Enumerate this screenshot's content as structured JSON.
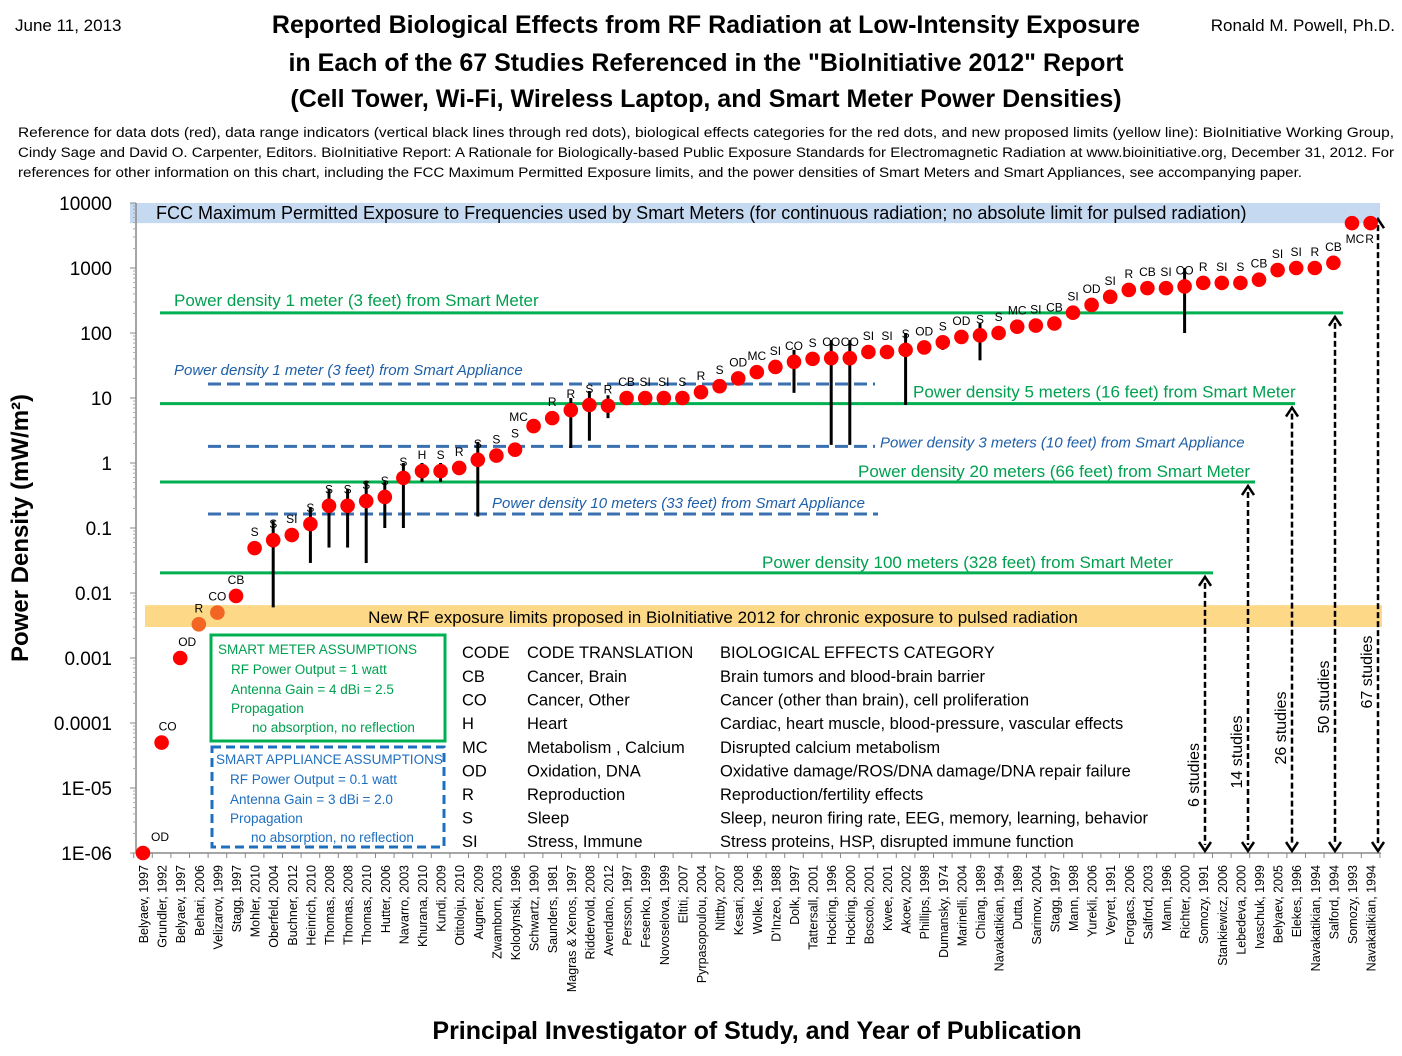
{
  "header": {
    "date": "June 11, 2013",
    "author": "Ronald M. Powell, Ph.D.",
    "title_lines": [
      "Reported Biological Effects from RF Radiation at Low-Intensity Exposure",
      "in Each of the 67 Studies Referenced in the \"BioInitiative 2012\" Report",
      "(Cell Tower, Wi-Fi, Wireless Laptop, and Smart Meter Power Densities)"
    ],
    "reference_lines": [
      "Reference for data dots (red), data range indicators (vertical black lines through red dots),  biological effects categories for the red dots, and new proposed limits (yellow line):  BioInitiative Working Group,",
      "Cindy Sage and David O. Carpenter, Editors. BioInitiative Report: A Rationale for Biologically-based Public Exposure Standards for Electromagnetic Radiation at www.bioinitiative.org, December 31, 2012.  For",
      "references for other information on this chart, including  the FCC Maximum Permitted Exposure limits, and the power densities of Smart Meters and Smart Appliances, see accompanying paper."
    ]
  },
  "chart_data": {
    "type": "scatter",
    "ylabel": "Power Density (mW/m²)",
    "xlabel": "Principal Investigator of Study, and Year of Publication",
    "yscale": "log",
    "ylim": [
      1e-06,
      10000
    ],
    "ytick_labels": [
      "1E-06",
      "1E-05",
      "0.0001",
      "0.001",
      "0.01",
      "0.1",
      "1",
      "10",
      "100",
      "1000",
      "10000"
    ],
    "grid": false,
    "colors": {
      "dot": "#ff0000",
      "dot_in_band": "#f26522",
      "smart_meter": "#00b050",
      "smart_appliance": "#2e75b6",
      "fcc_band": "#c5d9f1",
      "new_limit_band": "#fdd987"
    },
    "categories": [
      "Belyaev, 1997",
      "Grundler, 1992",
      "Belyaev, 1997",
      "Behari, 2006",
      "Velizarov, 1999",
      "Stagg, 1997",
      "Mohler, 2010",
      "Oberfeld, 2004",
      "Buchner, 2012",
      "Heinrich, 2010",
      "Thomas, 2008",
      "Thomas, 2008",
      "Thomas, 2010",
      "Hutter, 2006",
      "Navarro, 2003",
      "Khurana, 2010",
      "Kundi, 2009",
      "Otitoloju, 2010",
      "Augner, 2009",
      "Zwamborn, 2003",
      "Kolodynski, 1996",
      "Schwartz, 1990",
      "Saunders, 1981",
      "Magras & Xenos, 1997",
      "Riddervold, 2008",
      "Avendano, 2012",
      "Persson, 1997",
      "Fesenko, 1999",
      "Novoselova, 1999",
      "Eltiti, 2007",
      "Pyrpasopoulou, 2004",
      "Nittby, 2007",
      "Kesari, 2008",
      "Wolke, 1996",
      "D'Inzeo, 1988",
      "Dolk, 1997",
      "Tattersall, 2001",
      "Hocking, 1996",
      "Hocking, 2000",
      "Boscolo, 2001",
      "Kwee, 2001",
      "Akoev, 2002",
      "Phillips, 1998",
      "Dumansky, 1974",
      "Marinelli, 2004",
      "Chiang, 1989",
      "Navakatikian, 1994",
      "Dutta, 1989",
      "Sarimov, 2004",
      "Stagg, 1997",
      "Mann, 1998",
      "Yurekli, 2006",
      "Veyret, 1991",
      "Forgacs, 2006",
      "Salford, 2003",
      "Mann, 1996",
      "Richter, 2000",
      "Somozy, 1991",
      "Stankiewicz, 2006",
      "Lebedeva, 2000",
      "Ivaschuk, 1999",
      "Belyaev, 2005",
      "Elekes, 1996",
      "Navakatikian, 1994",
      "Salford, 1994",
      "Somozy, 1993",
      "Navakatikian, 1994"
    ],
    "values": [
      1e-06,
      5e-05,
      0.001,
      0.0033,
      0.005,
      0.009,
      0.049,
      0.065,
      0.078,
      0.115,
      0.22,
      0.22,
      0.26,
      0.3,
      0.59,
      0.75,
      0.75,
      0.84,
      1.12,
      1.3,
      1.6,
      3.7,
      4.9,
      6.5,
      7.8,
      7.6,
      10,
      10,
      10,
      10,
      12.3,
      15.2,
      20,
      25,
      30,
      36,
      40,
      41,
      41,
      51,
      51,
      55,
      60,
      72,
      87,
      92,
      100,
      125,
      130,
      140,
      205,
      270,
      360,
      460,
      490,
      490,
      520,
      590,
      590,
      590,
      660,
      930,
      1000,
      1000,
      1200,
      4900,
      4900
    ],
    "codes": [
      "OD",
      "CO",
      "OD",
      "R",
      "CO",
      "CB",
      "S",
      "S",
      "SI",
      "S",
      "S",
      "S",
      "S",
      "S",
      "S",
      "H",
      "S",
      "R",
      "S",
      "S",
      "S",
      "MC",
      "R",
      "R",
      "S",
      "R",
      "CB",
      "SI",
      "SI",
      "S",
      "R",
      "S",
      "OD",
      "MC",
      "SI",
      "CO",
      "S",
      "CO",
      "CO",
      "SI",
      "SI",
      "S",
      "OD",
      "S",
      "OD",
      "S",
      "S",
      "MC",
      "SI",
      "CB",
      "SI",
      "OD",
      "SI",
      "R",
      "CB",
      "SI",
      "CO",
      "R",
      "SI",
      "S",
      "CB",
      "SI",
      "SI",
      "R",
      "CB",
      "MC",
      "R"
    ],
    "data_ranges": [
      {
        "study": 8,
        "low": 0.006,
        "high": 0.13
      },
      {
        "study": 10,
        "low": 0.029,
        "high": 0.21
      },
      {
        "study": 11,
        "low": 0.05,
        "high": 0.4
      },
      {
        "study": 12,
        "low": 0.05,
        "high": 0.4
      },
      {
        "study": 13,
        "low": 0.029,
        "high": 0.52
      },
      {
        "study": 14,
        "low": 0.1,
        "high": 0.52
      },
      {
        "study": 15,
        "low": 0.1,
        "high": 1.0
      },
      {
        "study": 16,
        "low": 0.51,
        "high": 1.0
      },
      {
        "study": 17,
        "low": 0.51,
        "high": 1.0
      },
      {
        "study": 19,
        "low": 0.15,
        "high": 2.1
      },
      {
        "study": 24,
        "low": 1.7,
        "high": 10
      },
      {
        "study": 25,
        "low": 2.2,
        "high": 12.8
      },
      {
        "study": 26,
        "low": 4.9,
        "high": 11
      },
      {
        "study": 36,
        "low": 12,
        "high": 55
      },
      {
        "study": 38,
        "low": 1.9,
        "high": 78
      },
      {
        "study": 39,
        "low": 1.9,
        "high": 78
      },
      {
        "study": 42,
        "low": 7.8,
        "high": 100
      },
      {
        "study": 44,
        "low": 55,
        "high": 72
      },
      {
        "study": 46,
        "low": 38,
        "high": 141
      },
      {
        "study": 57,
        "low": 100,
        "high": 1000
      }
    ],
    "bands": [
      {
        "id": "fcc",
        "label": "FCC Maximum Permitted Exposure to Frequencies used by Smart Meters (for continuous radiation; no absolute limit for pulsed radiation)",
        "low": 4900,
        "high": 10000
      },
      {
        "id": "bio",
        "label": "New RF exposure limits proposed in BioInitiative 2012 for chronic exposure to pulsed radiation",
        "low": 0.003,
        "high": 0.0065
      }
    ],
    "reference_lines": [
      {
        "id": "sm1",
        "label": "Power density 1 meter (3 feet) from Smart Meter",
        "value": 204,
        "kind": "smart_meter"
      },
      {
        "id": "ap1",
        "label": "Power density 1 meter (3 feet) from Smart Appliance",
        "value": 16.4,
        "kind": "smart_appliance"
      },
      {
        "id": "sm5",
        "label": "Power density 5 meters (16 feet) from Smart Meter",
        "value": 8.2,
        "kind": "smart_meter"
      },
      {
        "id": "ap3",
        "label": "Power density 3 meters (10 feet) from Smart Appliance",
        "value": 1.8,
        "kind": "smart_appliance"
      },
      {
        "id": "sm20",
        "label": "Power density 20 meters (66 feet) from Smart Meter",
        "value": 0.51,
        "kind": "smart_meter"
      },
      {
        "id": "ap10",
        "label": "Power density 10 meters (33 feet) from Smart Appliance",
        "value": 0.164,
        "kind": "smart_appliance"
      },
      {
        "id": "sm100",
        "label": "Power density 100 meters (328 feet) from Smart Meter",
        "value": 0.0204,
        "kind": "smart_meter"
      }
    ],
    "study_counts": [
      {
        "label": "6 studies",
        "up_to": "sm100"
      },
      {
        "label": "14 studies",
        "up_to": "sm20"
      },
      {
        "label": "26 studies",
        "up_to": "sm5"
      },
      {
        "label": "50 studies",
        "up_to": "sm1"
      },
      {
        "label": "67 studies",
        "up_to": "fcc"
      }
    ]
  },
  "smart_meter_box": [
    "SMART METER ASSUMPTIONS",
    "RF Power Output = 1 watt",
    "Antenna Gain = 4 dBi  = 2.5",
    "Propagation",
    "no absorption, no reflection"
  ],
  "smart_appliance_box": [
    "SMART APPLIANCE ASSUMPTIONS",
    "RF Power Output = 0.1 watt",
    "Antenna Gain = 3 dBi = 2.0",
    "Propagation",
    "no absorption, no reflection"
  ],
  "code_table": {
    "headers": [
      "CODE",
      "CODE TRANSLATION",
      "BIOLOGICAL EFFECTS CATEGORY"
    ],
    "rows": [
      [
        "CB",
        "Cancer, Brain",
        "Brain tumors and  blood-brain barrier"
      ],
      [
        "CO",
        "Cancer, Other",
        "Cancer (other than brain), cell proliferation"
      ],
      [
        "H",
        "Heart",
        "Cardiac, heart muscle, blood-pressure, vascular effects"
      ],
      [
        "MC",
        "Metabolism , Calcium",
        "Disrupted calcium metabolism"
      ],
      [
        "OD",
        "Oxidation, DNA",
        "Oxidative damage/ROS/DNA damage/DNA repair failure"
      ],
      [
        "R",
        "Reproduction",
        "Reproduction/fertility effects"
      ],
      [
        "S",
        "Sleep",
        "Sleep, neuron firing rate, EEG, memory, learning, behavior"
      ],
      [
        "SI",
        "Stress, Immune",
        "Stress proteins, HSP, disrupted immune function"
      ]
    ]
  }
}
